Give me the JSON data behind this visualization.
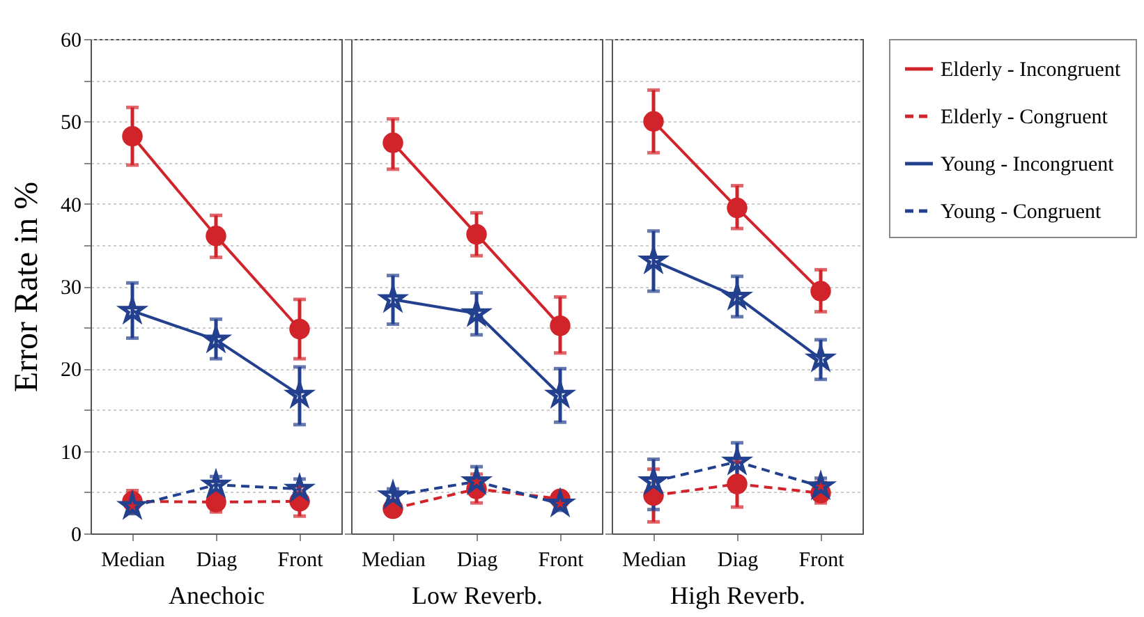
{
  "chart_data": [
    {
      "type": "line",
      "categories": [
        "Median",
        "Diag",
        "Front"
      ],
      "xlabel": "Anechoic",
      "ylabel": "Error Rate in %",
      "ylim": [
        0,
        60
      ],
      "yticks": [
        0,
        {
          "value": 5,
          "label": null
        },
        10,
        {
          "value": 15,
          "label": null
        },
        20,
        {
          "value": 25,
          "label": null
        },
        30,
        {
          "value": 35,
          "label": null
        },
        40,
        {
          "value": 45,
          "label": null
        },
        50,
        {
          "value": 55,
          "label": null
        },
        60
      ],
      "grid": "y",
      "legend": "right",
      "series": [
        {
          "name": "Elderly - Incongruent",
          "color": "#d1242a",
          "marker": "circle",
          "line_style": "solid",
          "values": [
            48.2,
            36.1,
            24.8
          ],
          "errors": [
            [
              44.7,
              51.7
            ],
            [
              33.5,
              38.6
            ],
            [
              21.2,
              28.4
            ]
          ]
        },
        {
          "name": "Elderly - Congruent",
          "color": "#d1242a",
          "marker": "circle",
          "line_style": "dashed",
          "values": [
            3.9,
            3.8,
            3.9
          ],
          "errors": [
            [
              2.5,
              5.2
            ],
            [
              2.6,
              5.1
            ],
            [
              2.1,
              5.7
            ]
          ]
        },
        {
          "name": "Young - Incongruent",
          "color": "#23408e",
          "marker": "star",
          "line_style": "solid",
          "values": [
            27.0,
            23.5,
            16.8
          ],
          "errors": [
            [
              23.7,
              30.4
            ],
            [
              21.2,
              26.0
            ],
            [
              13.2,
              20.2
            ]
          ]
        },
        {
          "name": "Young - Congruent",
          "color": "#23408e",
          "marker": "star",
          "line_style": "dashed",
          "values": [
            3.3,
            5.9,
            5.4
          ],
          "errors": [
            [
              2.4,
              4.2
            ],
            [
              4.8,
              6.9
            ],
            [
              4.2,
              6.6
            ]
          ]
        }
      ]
    },
    {
      "type": "line",
      "categories": [
        "Median",
        "Diag",
        "Front"
      ],
      "xlabel": "Low Reverb.",
      "ylim": [
        0,
        60
      ],
      "yticks": [
        0,
        5,
        10,
        15,
        20,
        25,
        30,
        35,
        40,
        45,
        50,
        55,
        60
      ],
      "grid": "y",
      "tick_labels": "x",
      "series": [
        {
          "name": "Elderly - Incongruent",
          "color": "#d1242a",
          "marker": "circle",
          "line_style": "solid",
          "values": [
            47.4,
            36.3,
            25.2
          ],
          "errors": [
            [
              44.2,
              50.3
            ],
            [
              33.7,
              38.9
            ],
            [
              21.9,
              28.7
            ]
          ]
        },
        {
          "name": "Elderly - Congruent",
          "color": "#d1242a",
          "marker": "circle",
          "line_style": "dashed",
          "values": [
            3.0,
            5.4,
            4.2
          ],
          "errors": [
            [
              2.2,
              3.8
            ],
            [
              3.7,
              7.2
            ],
            [
              3.2,
              5.0
            ]
          ]
        },
        {
          "name": "Young - Incongruent",
          "color": "#23408e",
          "marker": "star",
          "line_style": "solid",
          "values": [
            28.4,
            26.7,
            16.8
          ],
          "errors": [
            [
              25.4,
              31.3
            ],
            [
              24.1,
              29.2
            ],
            [
              13.5,
              20.0
            ]
          ]
        },
        {
          "name": "Young - Congruent",
          "color": "#23408e",
          "marker": "star",
          "line_style": "dashed",
          "values": [
            4.6,
            6.3,
            3.6
          ],
          "errors": [
            [
              3.8,
              5.4
            ],
            [
              4.6,
              8.1
            ],
            [
              2.8,
              4.3
            ]
          ]
        }
      ]
    },
    {
      "type": "line",
      "categories": [
        "Median",
        "Diag",
        "Front"
      ],
      "xlabel": "High Reverb.",
      "ylim": [
        0,
        60
      ],
      "yticks": [
        0,
        5,
        10,
        15,
        20,
        25,
        30,
        35,
        40,
        45,
        50,
        55,
        60
      ],
      "grid": "y",
      "tick_labels": "x",
      "series": [
        {
          "name": "Elderly - Incongruent",
          "color": "#d1242a",
          "marker": "circle",
          "line_style": "solid",
          "values": [
            50.0,
            39.5,
            29.4
          ],
          "errors": [
            [
              46.2,
              53.8
            ],
            [
              37.0,
              42.2
            ],
            [
              26.9,
              32.0
            ]
          ]
        },
        {
          "name": "Elderly - Congruent",
          "color": "#d1242a",
          "marker": "circle",
          "line_style": "dashed",
          "values": [
            4.6,
            6.0,
            4.9
          ],
          "errors": [
            [
              1.4,
              7.8
            ],
            [
              3.2,
              8.7
            ],
            [
              3.7,
              6.2
            ]
          ]
        },
        {
          "name": "Young - Incongruent",
          "color": "#23408e",
          "marker": "star",
          "line_style": "solid",
          "values": [
            33.1,
            28.7,
            21.2
          ],
          "errors": [
            [
              29.4,
              36.7
            ],
            [
              26.3,
              31.2
            ],
            [
              18.7,
              23.5
            ]
          ]
        },
        {
          "name": "Young - Congruent",
          "color": "#23408e",
          "marker": "star",
          "line_style": "dashed",
          "values": [
            6.3,
            8.7,
            5.7
          ],
          "errors": [
            [
              2.9,
              9.0
            ],
            [
              6.8,
              11.0
            ],
            [
              4.5,
              6.7
            ]
          ]
        }
      ]
    }
  ]
}
